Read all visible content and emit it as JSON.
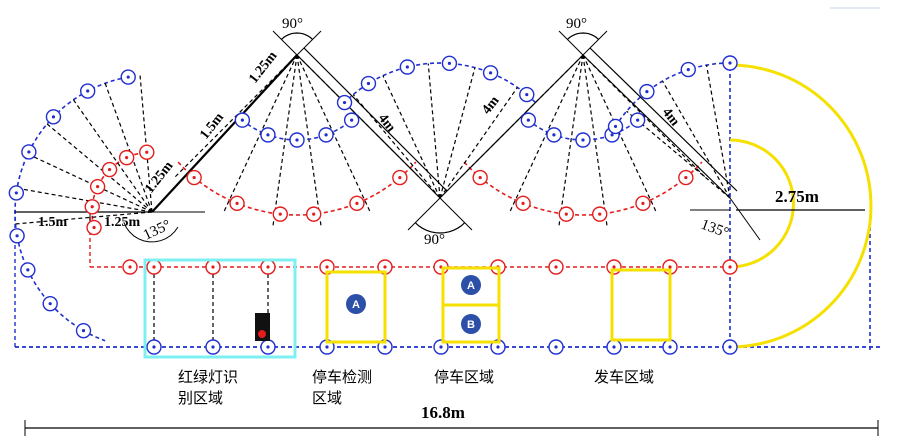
{
  "colors": {
    "blue": "#1f2fd0",
    "red": "#e41c1c",
    "yellow": "#f5e000",
    "cyan": "#7ef0f2",
    "black": "#000000",
    "badge": "#2c4fa8"
  },
  "labels": {
    "angle_90_left": "90°",
    "angle_90_right": "90°",
    "angle_90_bottom": "90°",
    "angle_135_left": "135°",
    "angle_135_right": "135°",
    "dim_1_25m_top": "1.25m",
    "dim_1_5m_diag": "1.5m",
    "dim_1_25m_diag": "1.25m",
    "dim_1_5m_horiz": "1.5m",
    "dim_1_25m_horiz": "1.25m",
    "dim_4m_1": "4m",
    "dim_4m_2": "4m",
    "dim_4m_3": "4m",
    "dim_2_75m": "2.75m",
    "dim_16_8m": "16.8m"
  },
  "zones": {
    "traffic_light_line1": "红绿灯识",
    "traffic_light_line2": "别区域",
    "parking_detect_line1": "停车检测",
    "parking_detect_line2": "区域",
    "parking": "停车区域",
    "departure": "发车区域"
  },
  "badges": {
    "detect_a": "A",
    "parking_a": "A",
    "parking_b": "B"
  }
}
